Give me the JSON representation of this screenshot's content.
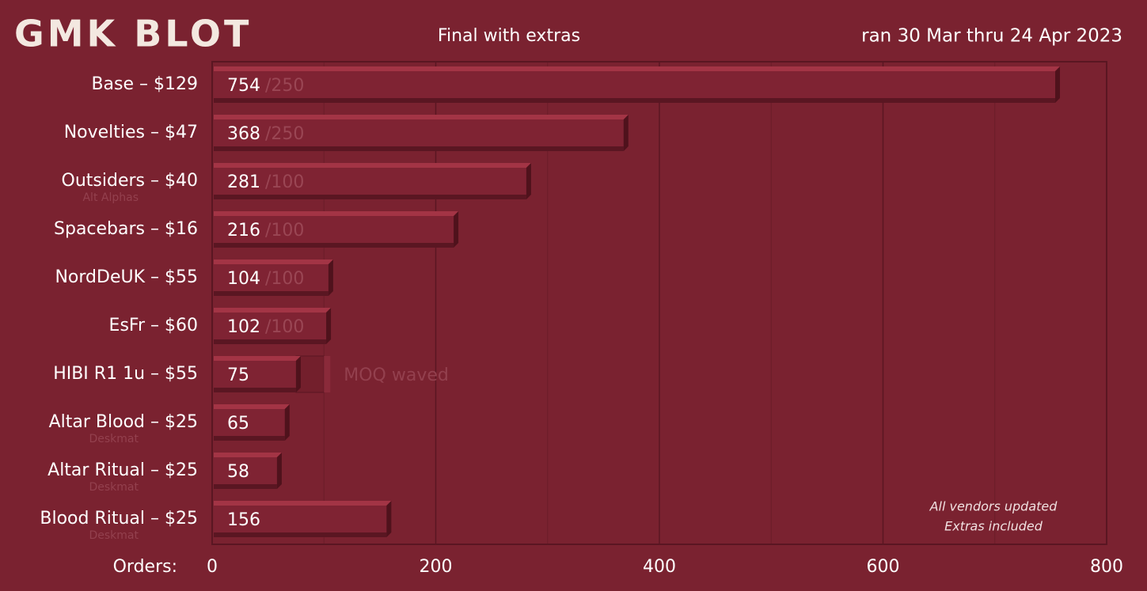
{
  "chart_data": {
    "type": "bar",
    "orientation": "horizontal",
    "logo": "GMK BLOT",
    "title": "Final with extras",
    "subtitle": "ran 30 Mar thru 24 Apr 2023",
    "xlabel": "Orders:",
    "categories": [
      "Base – $129",
      "Novelties – $47",
      "Outsiders – $40",
      "Spacebars – $16",
      "NordDeUK – $55",
      "EsFr – $60",
      "HIBI R1 1u  – $55",
      "Altar Blood – $25",
      "Altar Ritual – $25",
      "Blood Ritual – $25"
    ],
    "sublabels": [
      null,
      null,
      "Alt Alphas",
      null,
      null,
      null,
      null,
      "Deskmat",
      "Deskmat",
      "Deskmat"
    ],
    "values": [
      754,
      368,
      281,
      216,
      104,
      102,
      75,
      65,
      58,
      156
    ],
    "moq_labels": [
      "/250",
      "/250",
      "/100",
      "/100",
      "/100",
      "/100",
      null,
      null,
      null,
      null
    ],
    "waved_moq": [
      null,
      null,
      null,
      null,
      null,
      null,
      100,
      null,
      null,
      null
    ],
    "waved_label": "MOQ waved",
    "notes": [
      "All vendors updated",
      "Extras included"
    ],
    "color": "#7f2333",
    "xlim": [
      0,
      800
    ],
    "xticks": [
      0,
      200,
      400,
      600,
      800
    ],
    "xminor": [
      100,
      300,
      500,
      700
    ],
    "grid": true
  }
}
